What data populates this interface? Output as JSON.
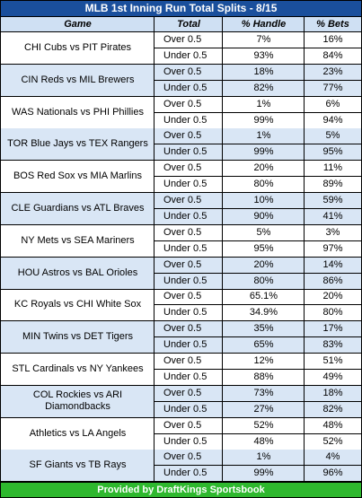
{
  "title": "MLB 1st Inning Run Total Splits - 8/15",
  "columns": [
    "Game",
    "Total",
    "% Handle",
    "% Bets"
  ],
  "games": [
    {
      "matchup": "CHI Cubs vs PIT Pirates",
      "over": {
        "line": "Over 0.5",
        "handle": "7%",
        "bets": "16%"
      },
      "under": {
        "line": "Under 0.5",
        "handle": "93%",
        "bets": "84%"
      }
    },
    {
      "matchup": "CIN Reds vs MIL Brewers",
      "over": {
        "line": "Over 0.5",
        "handle": "18%",
        "bets": "23%"
      },
      "under": {
        "line": "Under 0.5",
        "handle": "82%",
        "bets": "77%"
      }
    },
    {
      "matchup": "WAS Nationals vs PHI Phillies",
      "over": {
        "line": "Over 0.5",
        "handle": "1%",
        "bets": "6%"
      },
      "under": {
        "line": "Under 0.5",
        "handle": "99%",
        "bets": "94%"
      }
    },
    {
      "matchup": "TOR Blue Jays vs TEX Rangers",
      "over": {
        "line": "Over 0.5",
        "handle": "1%",
        "bets": "5%"
      },
      "under": {
        "line": "Under 0.5",
        "handle": "99%",
        "bets": "95%"
      }
    },
    {
      "matchup": "BOS Red Sox vs MIA Marlins",
      "over": {
        "line": "Over 0.5",
        "handle": "20%",
        "bets": "11%"
      },
      "under": {
        "line": "Under 0.5",
        "handle": "80%",
        "bets": "89%"
      }
    },
    {
      "matchup": "CLE Guardians vs ATL Braves",
      "over": {
        "line": "Over 0.5",
        "handle": "10%",
        "bets": "59%"
      },
      "under": {
        "line": "Under 0.5",
        "handle": "90%",
        "bets": "41%"
      }
    },
    {
      "matchup": "NY Mets vs SEA Mariners",
      "over": {
        "line": "Over 0.5",
        "handle": "5%",
        "bets": "3%"
      },
      "under": {
        "line": "Under 0.5",
        "handle": "95%",
        "bets": "97%"
      }
    },
    {
      "matchup": "HOU Astros vs BAL Orioles",
      "over": {
        "line": "Over 0.5",
        "handle": "20%",
        "bets": "14%"
      },
      "under": {
        "line": "Under 0.5",
        "handle": "80%",
        "bets": "86%"
      }
    },
    {
      "matchup": "KC Royals vs CHI White Sox",
      "over": {
        "line": "Over 0.5",
        "handle": "65.1%",
        "bets": "20%"
      },
      "under": {
        "line": "Under 0.5",
        "handle": "34.9%",
        "bets": "80%"
      }
    },
    {
      "matchup": "MIN Twins vs DET Tigers",
      "over": {
        "line": "Over 0.5",
        "handle": "35%",
        "bets": "17%"
      },
      "under": {
        "line": "Under 0.5",
        "handle": "65%",
        "bets": "83%"
      }
    },
    {
      "matchup": "STL Cardinals vs NY Yankees",
      "over": {
        "line": "Over 0.5",
        "handle": "12%",
        "bets": "51%"
      },
      "under": {
        "line": "Under 0.5",
        "handle": "88%",
        "bets": "49%"
      }
    },
    {
      "matchup": "COL Rockies vs ARI Diamondbacks",
      "over": {
        "line": "Over 0.5",
        "handle": "73%",
        "bets": "18%"
      },
      "under": {
        "line": "Under 0.5",
        "handle": "27%",
        "bets": "82%"
      }
    },
    {
      "matchup": "Athletics vs LA Angels",
      "over": {
        "line": "Over 0.5",
        "handle": "52%",
        "bets": "48%"
      },
      "under": {
        "line": "Under 0.5",
        "handle": "48%",
        "bets": "52%"
      }
    },
    {
      "matchup": "SF Giants vs TB Rays",
      "over": {
        "line": "Over 0.5",
        "handle": "1%",
        "bets": "4%"
      },
      "under": {
        "line": "Under 0.5",
        "handle": "99%",
        "bets": "96%"
      }
    }
  ],
  "footer": "Provided by DraftKings Sportsbook",
  "colors": {
    "title_bg": "#1a4f9c",
    "header_bg": "#cfe0f3",
    "alt_row_bg": "#d9e6f5",
    "footer_bg": "#2eb82e"
  }
}
